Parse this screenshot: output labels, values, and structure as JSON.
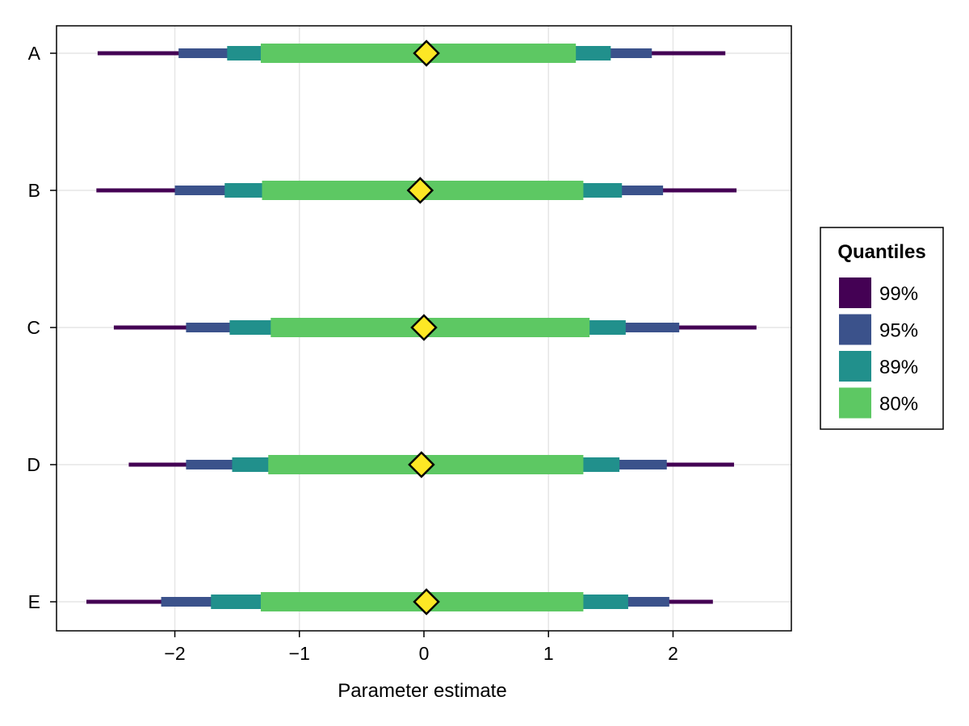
{
  "chart_data": {
    "type": "interval",
    "title": "",
    "xlabel": "Parameter estimate",
    "ylabel": "",
    "xlim": [
      -2.95,
      2.95
    ],
    "xticks": [
      -2,
      -1,
      0,
      1,
      2
    ],
    "xtick_labels": [
      "−2",
      "−1",
      "0",
      "1",
      "2"
    ],
    "categories": [
      "A",
      "B",
      "C",
      "D",
      "E"
    ],
    "grid": true,
    "legend": {
      "title": "Quantiles",
      "position": "right",
      "entries": [
        {
          "label": "99%",
          "color": "#440154"
        },
        {
          "label": "95%",
          "color": "#3b528b"
        },
        {
          "label": "89%",
          "color": "#21908c"
        },
        {
          "label": "80%",
          "color": "#5dc863"
        }
      ]
    },
    "point_color": "#fde725",
    "rows": [
      {
        "category": "A",
        "point": 0.02,
        "q99": [
          -2.62,
          2.42
        ],
        "q95": [
          -1.97,
          1.83
        ],
        "q89": [
          -1.58,
          1.5
        ],
        "q80": [
          -1.31,
          1.22
        ]
      },
      {
        "category": "B",
        "point": -0.03,
        "q99": [
          -2.63,
          2.51
        ],
        "q95": [
          -2.0,
          1.92
        ],
        "q89": [
          -1.6,
          1.59
        ],
        "q80": [
          -1.3,
          1.28
        ]
      },
      {
        "category": "C",
        "point": 0.0,
        "q99": [
          -2.49,
          2.67
        ],
        "q95": [
          -1.91,
          2.05
        ],
        "q89": [
          -1.56,
          1.62
        ],
        "q80": [
          -1.23,
          1.33
        ]
      },
      {
        "category": "D",
        "point": -0.02,
        "q99": [
          -2.37,
          2.49
        ],
        "q95": [
          -1.91,
          1.95
        ],
        "q89": [
          -1.54,
          1.57
        ],
        "q80": [
          -1.25,
          1.28
        ]
      },
      {
        "category": "E",
        "point": 0.02,
        "q99": [
          -2.71,
          2.32
        ],
        "q95": [
          -2.11,
          1.97
        ],
        "q89": [
          -1.71,
          1.64
        ],
        "q80": [
          -1.31,
          1.28
        ]
      }
    ]
  }
}
